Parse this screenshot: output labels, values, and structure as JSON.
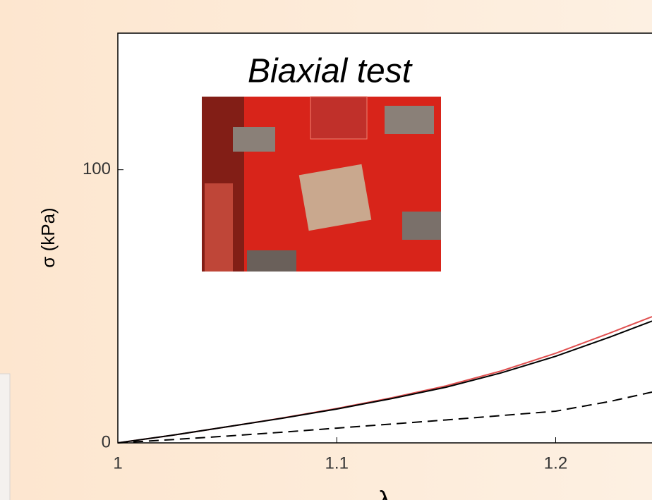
{
  "chart_data": {
    "type": "line",
    "annotation": "Biaxial test",
    "x_label": "λ",
    "y_label": "σ (kPa)",
    "x": [
      1,
      1.025,
      1.05,
      1.075,
      1.1,
      1.125,
      1.15,
      1.175,
      1.2,
      1.225,
      1.244
    ],
    "series": [
      {
        "color": "#e05050",
        "dash": false,
        "values": [
          0,
          2.8,
          5.9,
          9.1,
          12.6,
          16.5,
          20.9,
          26.3,
          32.8,
          40.3,
          46.2
        ]
      },
      {
        "color": "#000000",
        "dash": false,
        "values": [
          0,
          2.8,
          5.9,
          9.0,
          12.4,
          16.2,
          20.4,
          25.6,
          31.7,
          38.8,
          44.6
        ]
      },
      {
        "color": "#000000",
        "dash": true,
        "values": [
          0,
          1.2,
          2.5,
          3.9,
          5.4,
          6.9,
          8.4,
          10,
          11.6,
          15.2,
          18.6
        ]
      }
    ],
    "xlim": [
      1,
      1.244
    ],
    "xticks": [
      1,
      1.1,
      1.2
    ],
    "ylim": [
      0,
      150
    ],
    "yticks": [
      0,
      100
    ]
  }
}
